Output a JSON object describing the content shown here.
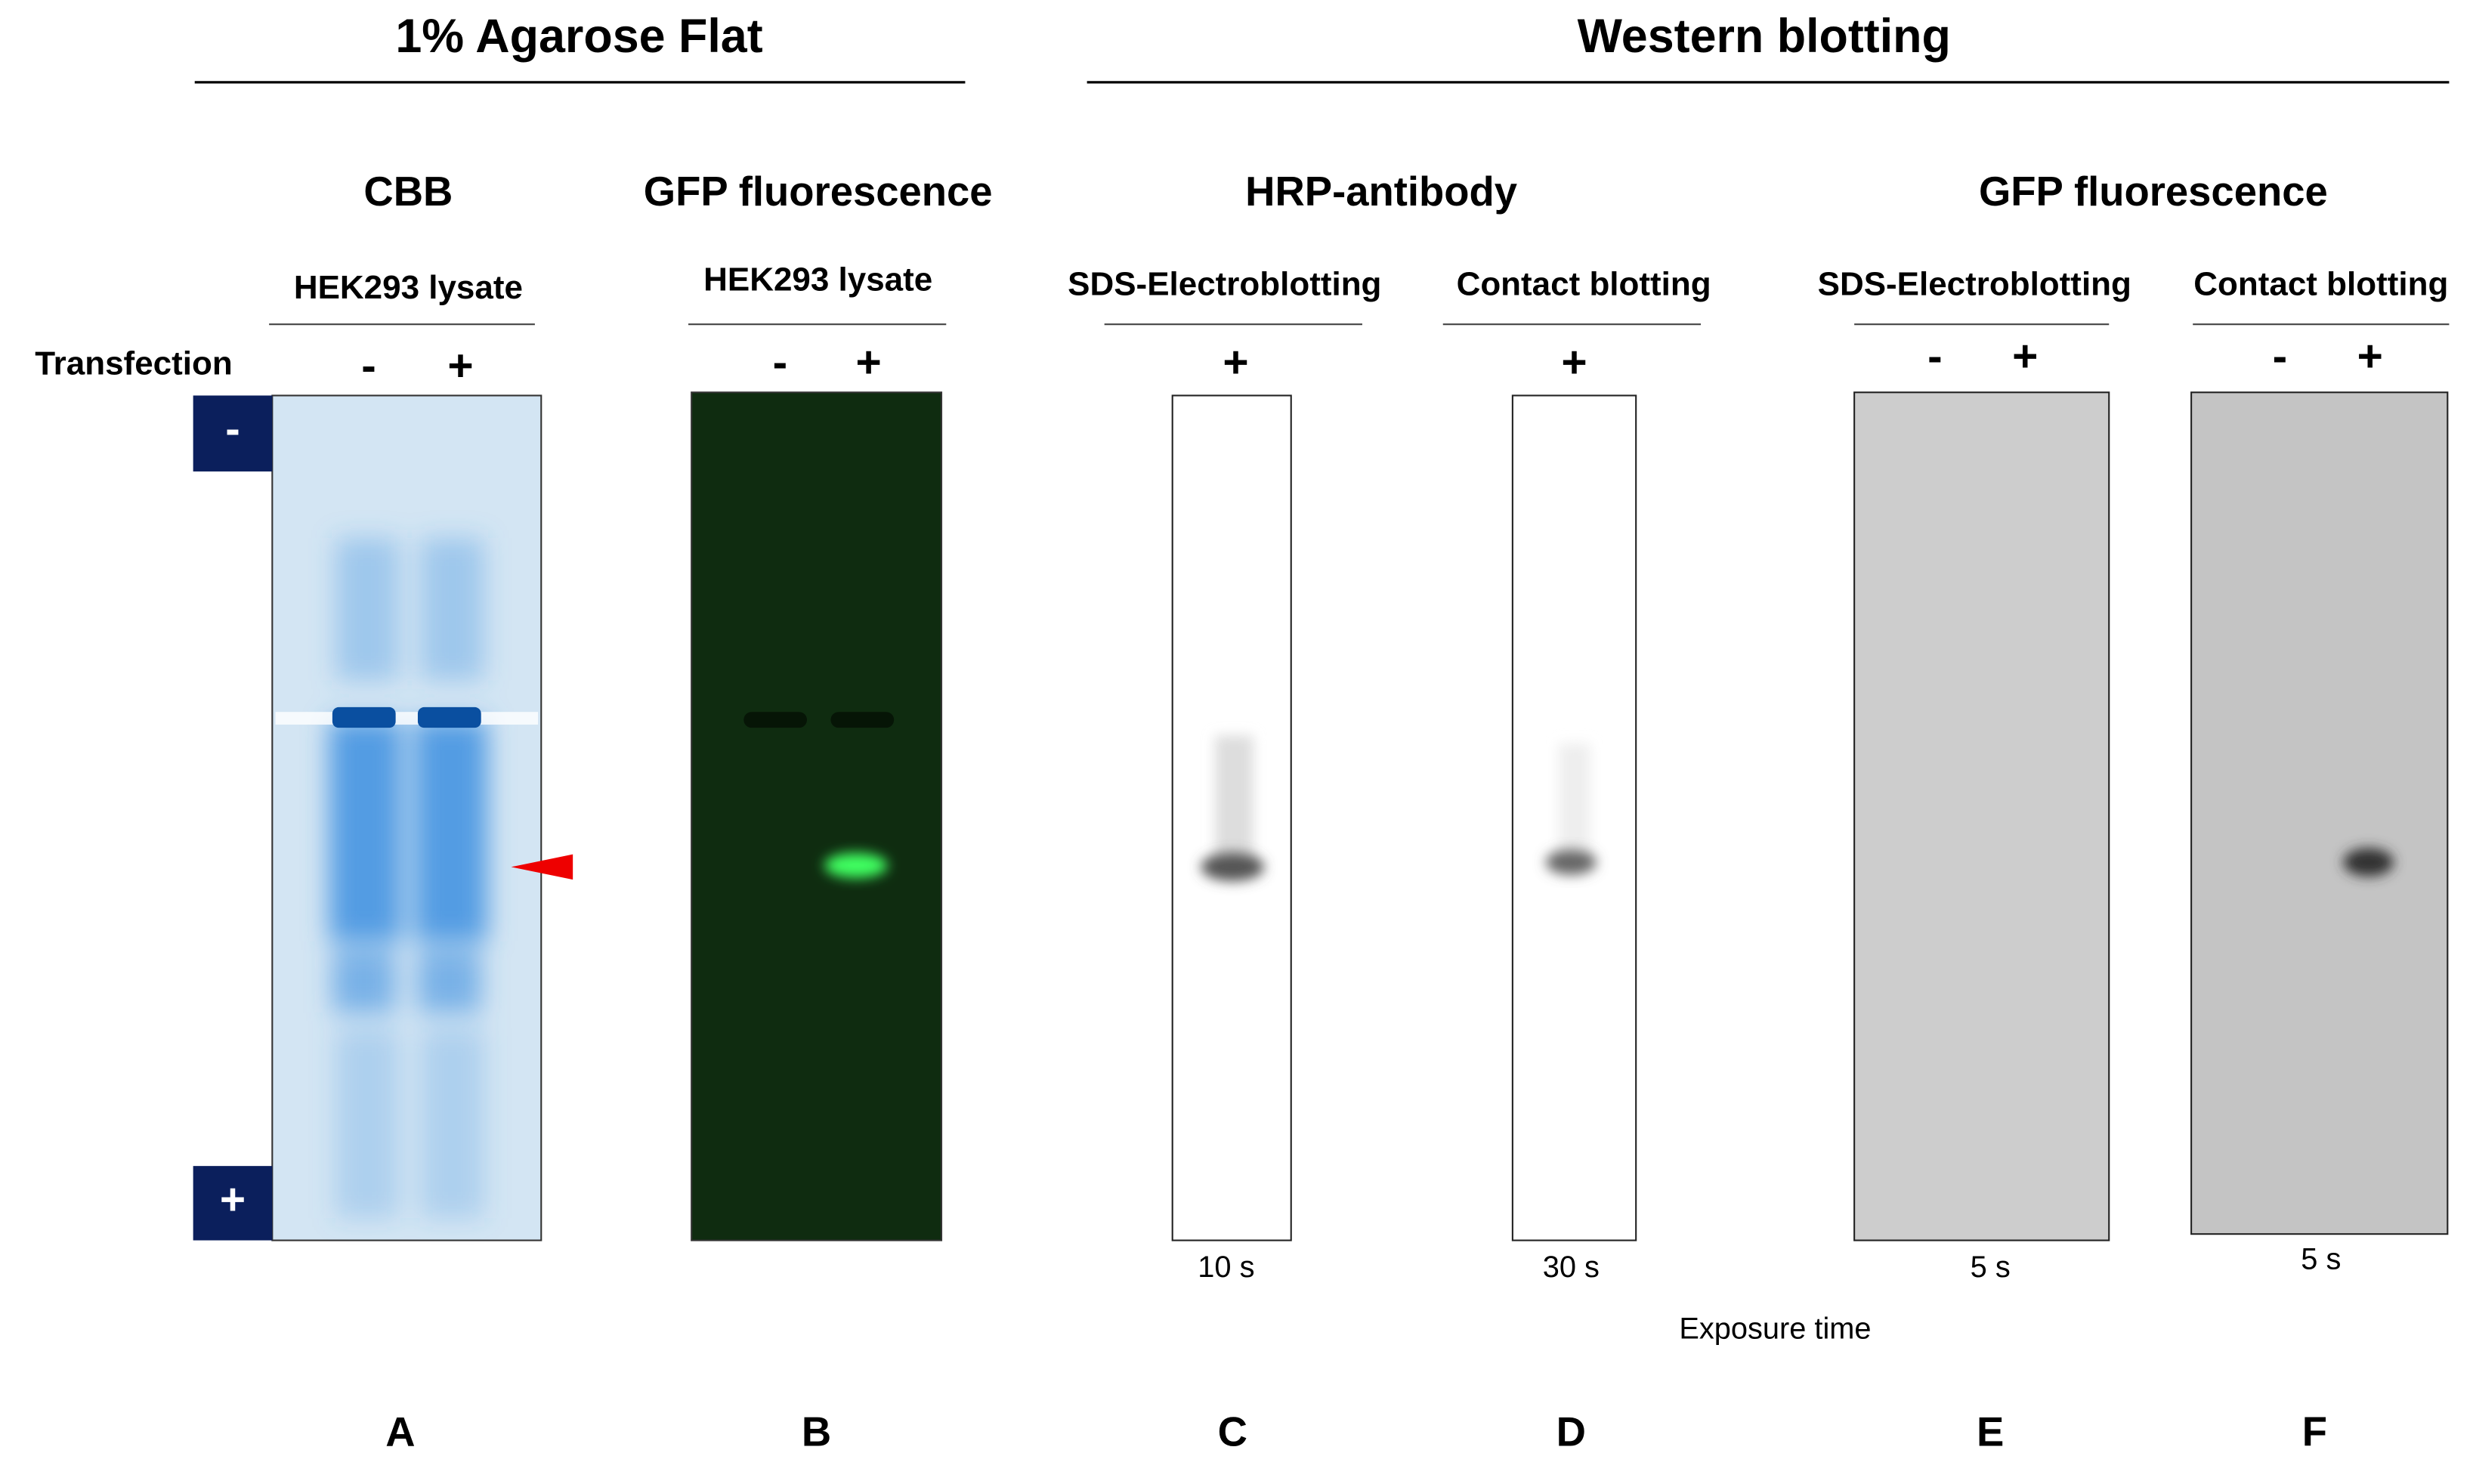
{
  "sections": [
    {
      "title": "1% Agarose Flat"
    },
    {
      "title": "Western blotting"
    }
  ],
  "methods": [
    {
      "title": "CBB"
    },
    {
      "title": "GFP fluorescence"
    },
    {
      "title": "HRP-antibody"
    },
    {
      "title": "GFP fluorescence"
    }
  ],
  "row_label": "Transfection",
  "electrodes": [
    "-",
    "+"
  ],
  "panels": [
    {
      "letter": "A",
      "subtitle": "HEK293 lysate",
      "lanes": [
        "-",
        "+"
      ]
    },
    {
      "letter": "B",
      "subtitle": "HEK293 lysate",
      "lanes": [
        "-",
        "+"
      ]
    },
    {
      "letter": "C",
      "subtitle": "SDS-Electroblotting",
      "lanes": [
        "+"
      ],
      "exposure": "10 s"
    },
    {
      "letter": "D",
      "subtitle": "Contact blotting",
      "lanes": [
        "+"
      ],
      "exposure": "30 s"
    },
    {
      "letter": "E",
      "subtitle": "SDS-Electroblotting",
      "lanes": [
        "-",
        "+"
      ],
      "exposure": "5 s"
    },
    {
      "letter": "F",
      "subtitle": "Contact blotting",
      "lanes": [
        "-",
        "+"
      ],
      "exposure": "5 s"
    }
  ],
  "exposure_label": "Exposure time"
}
